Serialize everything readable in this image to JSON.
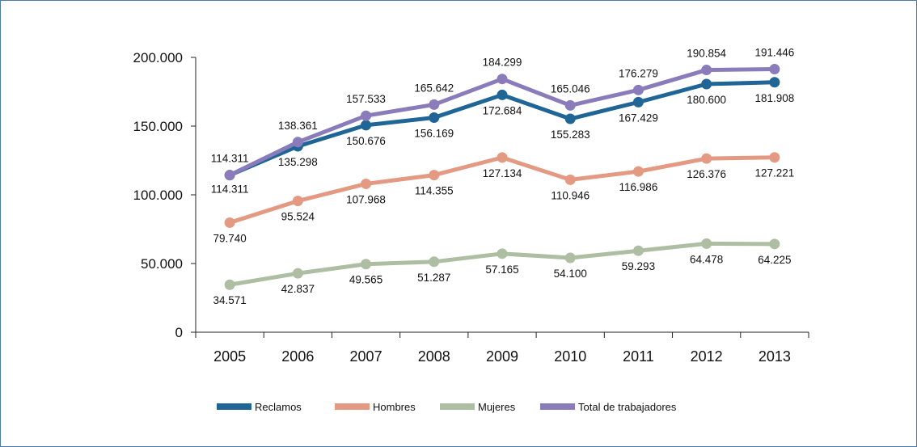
{
  "colors": {
    "reclamos": "#1f6696",
    "hombres": "#e49a82",
    "mujeres": "#adbea3",
    "total": "#8a7cba",
    "frame": "#4a7aaa",
    "axis": "#222222"
  },
  "chart_data": {
    "type": "line",
    "title": "",
    "xlabel": "",
    "ylabel": "",
    "categories": [
      "2005",
      "2006",
      "2007",
      "2008",
      "2009",
      "2010",
      "2011",
      "2012",
      "2013"
    ],
    "ylim": [
      0,
      200000
    ],
    "yticks": [
      0,
      50000,
      100000,
      150000,
      200000
    ],
    "ytick_labels": [
      "0",
      "50.000",
      "100.000",
      "150.000",
      "200.000"
    ],
    "legend_position": "bottom",
    "grid": false,
    "series": [
      {
        "key": "reclamos",
        "name": "Reclamos",
        "values": [
          114311,
          135298,
          150676,
          156169,
          172684,
          155283,
          167429,
          180600,
          181908
        ],
        "labels": [
          "114.311",
          "135.298",
          "150.676",
          "156.169",
          "172.684",
          "155.283",
          "167.429",
          "180.600",
          "181.908"
        ]
      },
      {
        "key": "hombres",
        "name": "Hombres",
        "values": [
          79740,
          95524,
          107968,
          114355,
          127134,
          110946,
          116986,
          126376,
          127221
        ],
        "labels": [
          "79.740",
          "95.524",
          "107.968",
          "114.355",
          "127.134",
          "110.946",
          "116.986",
          "126.376",
          "127.221"
        ]
      },
      {
        "key": "mujeres",
        "name": "Mujeres",
        "values": [
          34571,
          42837,
          49565,
          51287,
          57165,
          54100,
          59293,
          64478,
          64225
        ],
        "labels": [
          "34.571",
          "42.837",
          "49.565",
          "51.287",
          "57.165",
          "54.100",
          "59.293",
          "64.478",
          "64.225"
        ]
      },
      {
        "key": "total",
        "name": "Total de trabajadores",
        "values": [
          114311,
          138361,
          157533,
          165642,
          184299,
          165046,
          176279,
          190854,
          191446
        ],
        "labels": [
          "114.311",
          "138.361",
          "157.533",
          "165.642",
          "184.299",
          "165.046",
          "176.279",
          "190.854",
          "191.446"
        ]
      }
    ]
  }
}
